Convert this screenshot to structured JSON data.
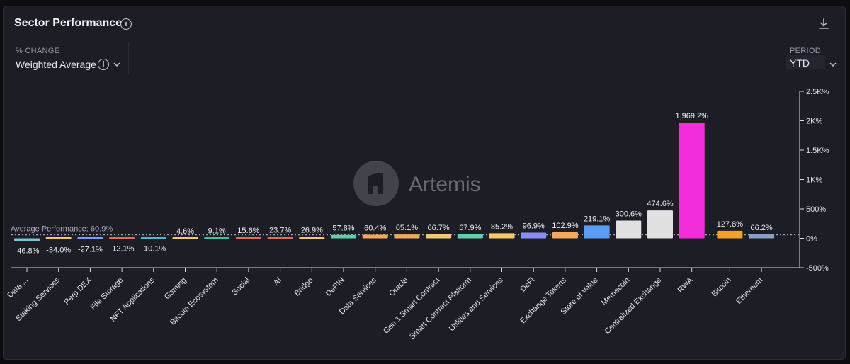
{
  "header": {
    "title": "Sector Performance"
  },
  "controls": {
    "metric_label": "% CHANGE",
    "metric_value": "Weighted Average",
    "period_label": "PERIOD",
    "period_value": "YTD"
  },
  "watermark": {
    "text": "Artemis"
  },
  "chart_data": {
    "type": "bar",
    "title": "Sector Performance",
    "ylabel": "% CHANGE",
    "ylim": [
      -500,
      2500
    ],
    "y_ticks": [
      "2.5K%",
      "2K%",
      "1.5K%",
      "1K%",
      "500%",
      "0%",
      "-500%"
    ],
    "y_tick_values": [
      2500,
      2000,
      1500,
      1000,
      500,
      0,
      -500
    ],
    "average_line": {
      "label": "Average Performance: 60.9%",
      "value": 60.9
    },
    "categories": [
      "Data ...",
      "Staking Services",
      "Perp DEX",
      "File Storage",
      "NFT Applications",
      "Gaming",
      "Bitcoin Ecosystem",
      "Social",
      "AI",
      "Bridge",
      "DePIN",
      "Data Services",
      "Oracle",
      "Gen 1 Smart Contract",
      "Smart Contract Platform",
      "Utilities and Services",
      "DeFi",
      "Exchange Tokens",
      "Store of Value",
      "Memecoin",
      "Centralized Exchange",
      "RWA",
      "Bitcoin",
      "Ethereum"
    ],
    "values": [
      -46.8,
      -34.0,
      -27.1,
      -12.1,
      -10.1,
      4.6,
      9.1,
      15.6,
      23.7,
      26.9,
      57.8,
      60.4,
      65.1,
      66.7,
      67.9,
      85.2,
      96.9,
      102.9,
      219.1,
      300.6,
      474.6,
      1969.2,
      127.8,
      66.2
    ],
    "value_labels": [
      "-46.8%",
      "-34.0%",
      "-27.1%",
      "-12.1%",
      "-10.1%",
      "4.6%",
      "9.1%",
      "15.6%",
      "23.7%",
      "26.9%",
      "57.8%",
      "60.4%",
      "65.1%",
      "66.7%",
      "67.9%",
      "85.2%",
      "96.9%",
      "102.9%",
      "219.1%",
      "300.6%",
      "474.6%",
      "1,969.2%",
      "127.8%",
      "66.2%"
    ],
    "colors": [
      "#74c7d4",
      "#f3c969",
      "#7c9cf5",
      "#e46a5c",
      "#4fb8c8",
      "#f3c969",
      "#3fbf9f",
      "#e46a5c",
      "#e46a5c",
      "#f3c969",
      "#5fd0a8",
      "#f5a85b",
      "#f5a85b",
      "#f3c969",
      "#5fd0a8",
      "#f3c969",
      "#8b8ef5",
      "#f5a85b",
      "#5b9cf5",
      "#e0e0e0",
      "#e0e0e0",
      "#f22ddc",
      "#f5a02a",
      "#8a9ec8"
    ],
    "grid": false,
    "legend": "none"
  }
}
